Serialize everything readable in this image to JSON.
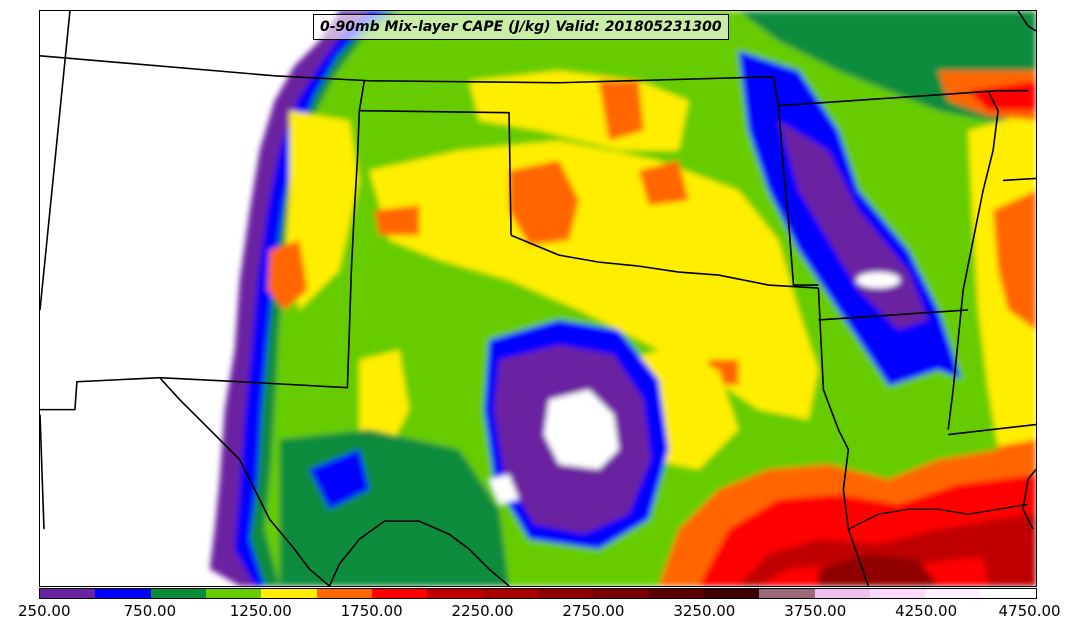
{
  "title": "0-90mb Mix-layer CAPE (J/kg) Valid: 201805231300",
  "colorbar": {
    "colors": [
      "#6a23a0",
      "#0000ff",
      "#0b8c3c",
      "#66cc00",
      "#ffee00",
      "#ff6600",
      "#ff0000",
      "#c00000",
      "#aa0000",
      "#900000",
      "#780000",
      "#5a0000",
      "#3c0000",
      "#9a6a7a",
      "#f0c0f0",
      "#ffd8ff",
      "#fff0ff",
      "#ffffff"
    ],
    "tick_labels": [
      "250.00",
      "750.00",
      "1250.00",
      "1750.00",
      "2250.00",
      "2750.00",
      "3250.00",
      "3750.00",
      "4250.00",
      "4750.00"
    ]
  }
}
